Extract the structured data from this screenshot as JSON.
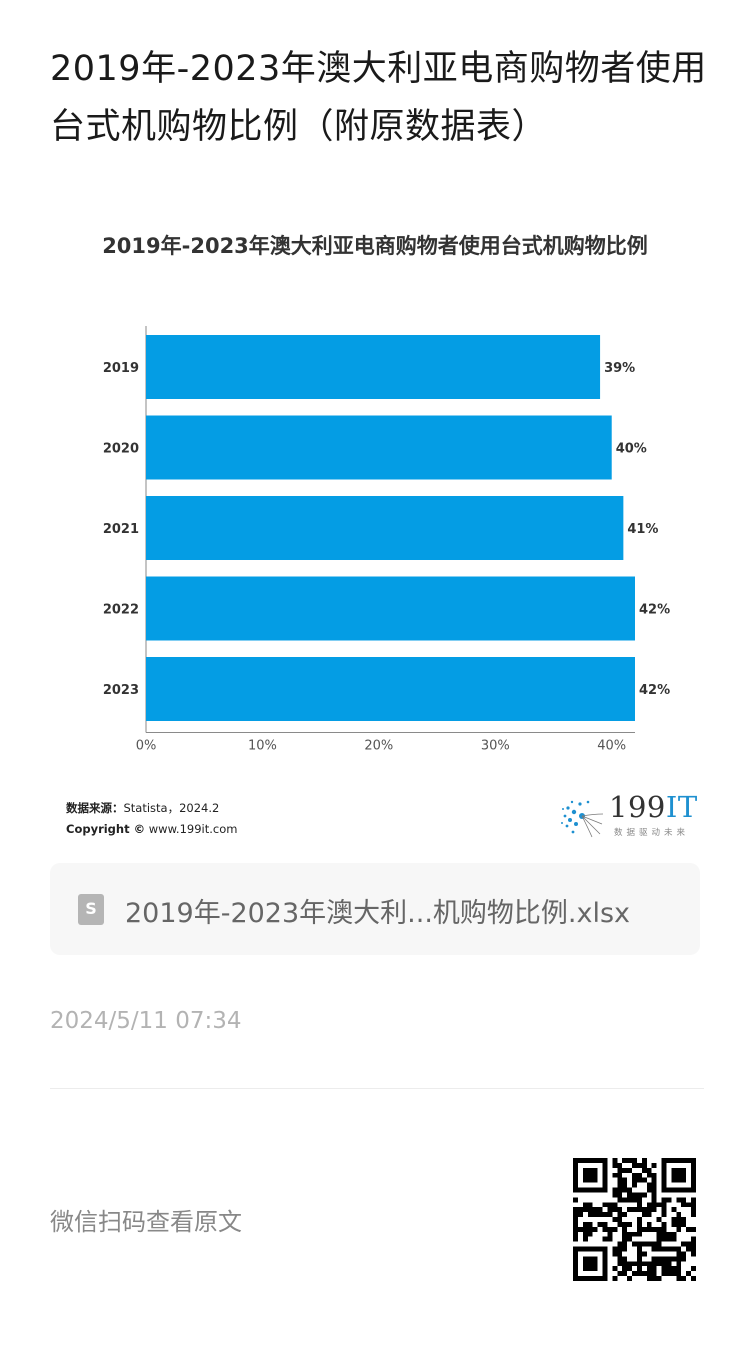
{
  "article": {
    "title": "2019年-2023年澳大利亚电商购物者使用台式机购物比例（附原数据表）"
  },
  "chart_data": {
    "type": "bar",
    "orientation": "horizontal",
    "title": "2019年-2023年澳大利亚电商购物者使用台式机购物比例",
    "categories": [
      "2019",
      "2020",
      "2021",
      "2022",
      "2023"
    ],
    "values": [
      39,
      40,
      41,
      42,
      42
    ],
    "value_labels": [
      "39%",
      "40%",
      "41%",
      "42%",
      "42%"
    ],
    "xlim": [
      0,
      42
    ],
    "xticks": [
      "0%",
      "10%",
      "20%",
      "30%",
      "40%"
    ],
    "xtick_values": [
      0,
      10,
      20,
      30,
      40
    ],
    "xlabel": "",
    "ylabel": "",
    "bar_color": "#049de4",
    "grid": false,
    "legend": "none"
  },
  "source": {
    "label": "数据来源：",
    "value": "Statista，2024.2",
    "copyright_label": "Copyright ©",
    "copyright_value": "www.199it.com"
  },
  "logo": {
    "num": "199",
    "it": "IT",
    "sub": "数据驱动未来"
  },
  "attachment": {
    "icon": "spreadsheet-file-icon",
    "icon_glyph": "S",
    "name": "2019年-2023年澳大利...机购物比例.xlsx"
  },
  "timestamp": "2024/5/11 07:34",
  "wechat": {
    "label": "微信扫码查看原文",
    "qr_icon": "qr-code-icon"
  },
  "colors": {
    "bar": "#049de4",
    "logo_accent": "#1e90d0",
    "muted_text": "#b3b3b3"
  }
}
